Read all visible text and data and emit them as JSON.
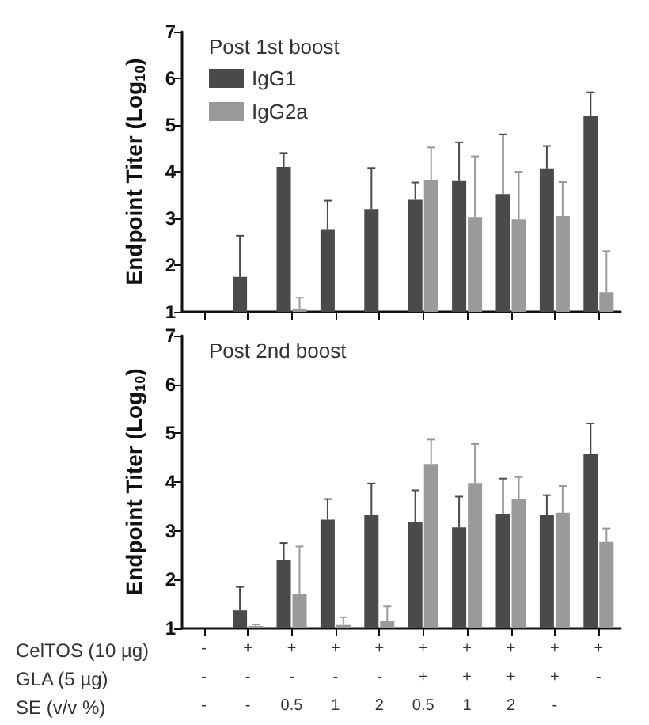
{
  "chart_data": [
    {
      "type": "bar",
      "title": "Post 1st boost",
      "ylabel": "Endpoint Titer (Log$_{10}$)",
      "categories": [
        null,
        null,
        null,
        null,
        null,
        null,
        null,
        null,
        null,
        null
      ],
      "series": [
        {
          "name": "IgG1",
          "color": "#4a4a4a",
          "values": [
            null,
            1.75,
            4.1,
            2.77,
            3.2,
            3.4,
            3.8,
            3.52,
            4.07,
            5.2
          ],
          "errors": [
            null,
            [
              1.75,
              2.63
            ],
            [
              4.1,
              4.4
            ],
            [
              2.77,
              3.38
            ],
            [
              3.2,
              4.08
            ],
            [
              3.4,
              3.77
            ],
            [
              3.8,
              4.63
            ],
            [
              3.52,
              4.8
            ],
            [
              4.07,
              4.55
            ],
            [
              5.2,
              5.7
            ]
          ]
        },
        {
          "name": "IgG2a",
          "color": "#9a9a9a",
          "values": [
            null,
            null,
            1.07,
            null,
            null,
            3.83,
            3.03,
            2.98,
            3.05,
            1.42
          ],
          "errors": [
            null,
            null,
            [
              1.07,
              1.3
            ],
            null,
            null,
            [
              3.83,
              4.52
            ],
            [
              3.03,
              4.33
            ],
            [
              2.98,
              4.0
            ],
            [
              3.05,
              3.78
            ],
            [
              1.42,
              2.3
            ]
          ]
        }
      ],
      "ylim": [
        1,
        7
      ],
      "yticks": [
        1,
        2,
        3,
        4,
        5,
        6,
        7
      ],
      "grid": false,
      "legend": "top left",
      "tick_labels": "y"
    },
    {
      "type": "bar",
      "title": "Post 2nd boost",
      "ylabel": "Endpoint Titer (Log$_{10}$)",
      "categories": [
        "-\n-\n-",
        "+\n-\n-",
        "+\n-\n0.5",
        "+\n-\n1",
        "+\n-\n2",
        "+\n+\n0.5",
        "+\n+\n1",
        "+\n+\n2",
        "+\n+\n-",
        "+\n-\n"
      ],
      "series": [
        {
          "color": "#4a4a4a",
          "values": [
            null,
            1.37,
            2.4,
            3.23,
            3.32,
            3.18,
            3.07,
            3.35,
            3.32,
            4.58
          ],
          "errors": [
            null,
            [
              1.37,
              1.85
            ],
            [
              2.4,
              2.75
            ],
            [
              3.23,
              3.65
            ],
            [
              3.32,
              3.97
            ],
            [
              3.18,
              3.83
            ],
            [
              3.07,
              3.7
            ],
            [
              3.35,
              4.07
            ],
            [
              3.32,
              3.73
            ],
            [
              4.58,
              5.2
            ]
          ]
        },
        {
          "color": "#9a9a9a",
          "values": [
            null,
            1.05,
            1.7,
            1.07,
            1.15,
            4.37,
            3.98,
            3.65,
            3.37,
            2.77
          ],
          "errors": [
            null,
            [
              1.05,
              1.08
            ],
            [
              1.7,
              2.68
            ],
            [
              1.07,
              1.23
            ],
            [
              1.15,
              1.45
            ],
            [
              4.37,
              4.87
            ],
            [
              3.98,
              4.78
            ],
            [
              3.65,
              4.1
            ],
            [
              3.37,
              3.92
            ],
            [
              2.77,
              3.05
            ]
          ]
        }
      ],
      "ylim": [
        1,
        7
      ],
      "yticks": [
        1,
        2,
        3,
        4,
        5,
        6,
        7
      ],
      "grid": false,
      "annotations": [
        "CelTOS (10 µg)",
        "GLA (5 µg)",
        "SE (v/v %)"
      ]
    }
  ]
}
